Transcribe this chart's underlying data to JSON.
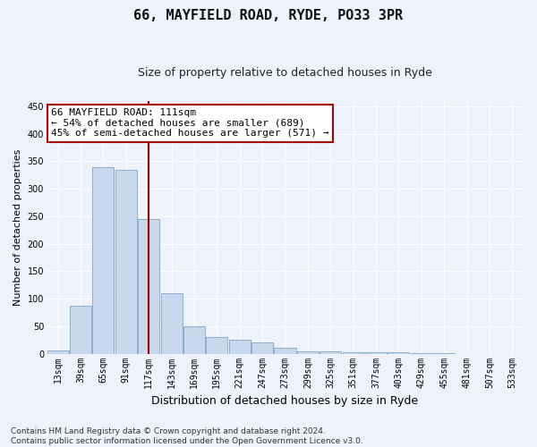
{
  "title": "66, MAYFIELD ROAD, RYDE, PO33 3PR",
  "subtitle": "Size of property relative to detached houses in Ryde",
  "xlabel": "Distribution of detached houses by size in Ryde",
  "ylabel": "Number of detached properties",
  "bar_color": "#c8d9ef",
  "bar_edge_color": "#8aaecc",
  "categories": [
    "13sqm",
    "39sqm",
    "65sqm",
    "91sqm",
    "117sqm",
    "143sqm",
    "169sqm",
    "195sqm",
    "221sqm",
    "247sqm",
    "273sqm",
    "299sqm",
    "325sqm",
    "351sqm",
    "377sqm",
    "403sqm",
    "429sqm",
    "455sqm",
    "481sqm",
    "507sqm",
    "533sqm"
  ],
  "values": [
    6,
    88,
    340,
    335,
    245,
    110,
    50,
    30,
    25,
    20,
    10,
    5,
    4,
    3,
    3,
    2,
    1,
    1,
    0,
    0,
    0
  ],
  "vline_color": "#aa0000",
  "annotation_line1": "66 MAYFIELD ROAD: 111sqm",
  "annotation_line2": "← 54% of detached houses are smaller (689)",
  "annotation_line3": "45% of semi-detached houses are larger (571) →",
  "annotation_box_color": "white",
  "annotation_box_edge": "#aa0000",
  "ylim": [
    0,
    460
  ],
  "yticks": [
    0,
    50,
    100,
    150,
    200,
    250,
    300,
    350,
    400,
    450
  ],
  "footer": "Contains HM Land Registry data © Crown copyright and database right 2024.\nContains public sector information licensed under the Open Government Licence v3.0.",
  "background_color": "#eef2fb",
  "grid_color": "#ffffff",
  "title_fontsize": 11,
  "subtitle_fontsize": 9,
  "ylabel_fontsize": 8,
  "xlabel_fontsize": 9,
  "tick_fontsize": 7,
  "footer_fontsize": 6.5,
  "annot_fontsize": 8,
  "vline_bar_index": 4
}
